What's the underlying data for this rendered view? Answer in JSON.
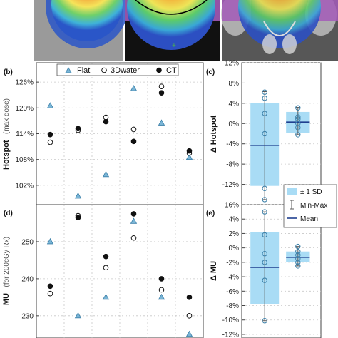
{
  "colors": {
    "flat": "#7ab5d6",
    "box_fill": "#a9dcf5",
    "mean_line": "#1f3f8f",
    "whisker": "#5a5a5a",
    "point_edge": "#3a7fa8",
    "grid": "#c8c8c8"
  },
  "images": [
    {
      "name": "dose-map-flat"
    },
    {
      "name": "dose-map-3dwater"
    },
    {
      "name": "dose-map-ct"
    }
  ],
  "chart_data": [
    {
      "panel": "(b)",
      "type": "scatter",
      "ylabel_main": "Hotspot",
      "ylabel_sub": "(max dose)",
      "yticks": [
        "126%",
        "120%",
        "114%",
        "108%",
        "102%"
      ],
      "ytick_values": [
        126,
        120,
        114,
        108,
        102
      ],
      "ylim": [
        97.5,
        130.5
      ],
      "x": [
        1,
        2,
        3,
        4,
        5,
        6
      ],
      "xlim": [
        0.5,
        6.5
      ],
      "grid": true,
      "legend": {
        "position": "top",
        "entries": [
          "Flat",
          "3Dwater",
          "CT"
        ]
      },
      "series": [
        {
          "name": "Flat",
          "marker": "triangle",
          "values": [
            120.5,
            99.5,
            104.5,
            124.5,
            116.5,
            108.5
          ]
        },
        {
          "name": "3Dwater",
          "marker": "open-circle",
          "values": [
            112.0,
            114.8,
            117.8,
            115.0,
            125.0,
            109.5
          ]
        },
        {
          "name": "CT",
          "marker": "filled-circle",
          "values": [
            113.8,
            115.2,
            116.8,
            112.2,
            123.5,
            110.0
          ]
        }
      ]
    },
    {
      "panel": "(d)",
      "type": "scatter",
      "ylabel_main": "MU",
      "ylabel_sub": "(for 200cGy Rx)",
      "yticks": [
        "250",
        "240",
        "230"
      ],
      "ytick_values": [
        250,
        240,
        230
      ],
      "ylim": [
        224,
        260
      ],
      "x": [
        1,
        2,
        3,
        4,
        5,
        6
      ],
      "xlim": [
        0.5,
        6.5
      ],
      "grid": true,
      "series": [
        {
          "name": "Flat",
          "marker": "triangle",
          "values": [
            250,
            230,
            235,
            255.5,
            235,
            225
          ]
        },
        {
          "name": "3Dwater",
          "marker": "open-circle",
          "values": [
            236,
            257,
            243,
            251,
            237,
            230
          ]
        },
        {
          "name": "CT",
          "marker": "filled-circle",
          "values": [
            238,
            256.5,
            246,
            257.5,
            240,
            235
          ]
        }
      ]
    },
    {
      "panel": "(c)",
      "type": "box",
      "ylabel_main": "Δ Hotspot",
      "yticks": [
        "12%",
        "8%",
        "4%",
        "0%",
        "-4%",
        "-8%",
        "-12%",
        "-16%"
      ],
      "ytick_values": [
        12,
        8,
        4,
        0,
        -4,
        -8,
        -12,
        -16
      ],
      "ylim": [
        -16,
        12
      ],
      "groups": [
        {
          "mean": -4.3,
          "sd_band": [
            -12.3,
            4.0
          ],
          "whisker": [
            -15.0,
            6.3
          ],
          "points": [
            6.2,
            5.0,
            2.0,
            -2.0,
            -12.8,
            -15.0
          ]
        },
        {
          "mean": 0.3,
          "sd_band": [
            -1.8,
            2.3
          ],
          "whisker": [
            -2.2,
            3.2
          ],
          "points": [
            3.1,
            1.3,
            0.9,
            0.0,
            -0.8,
            -2.2
          ]
        }
      ]
    },
    {
      "panel": "(e)",
      "type": "box",
      "ylabel_main": "Δ MU",
      "yticks": [
        "4%",
        "2%",
        "0%",
        "-2%",
        "-4%",
        "-6%",
        "-8%",
        "-10%",
        "-12%"
      ],
      "ytick_values": [
        4,
        2,
        0,
        -2,
        -4,
        -6,
        -8,
        -10,
        -12
      ],
      "ylim": [
        -12.5,
        6
      ],
      "legend": {
        "position": "top-right",
        "entries": [
          "± 1 SD",
          "Min-Max",
          "Mean"
        ]
      },
      "groups": [
        {
          "mean": -2.7,
          "sd_band": [
            -7.8,
            2.2
          ],
          "whisker": [
            -10.1,
            5.0
          ],
          "points": [
            5.0,
            1.8,
            -0.8,
            -2.0,
            -4.5,
            -10.1
          ]
        },
        {
          "mean": -1.3,
          "sd_band": [
            -2.0,
            -0.5
          ],
          "whisker": [
            -2.5,
            0.2
          ],
          "points": [
            0.2,
            -0.5,
            -1.0,
            -1.5,
            -2.0,
            -2.5
          ]
        }
      ]
    }
  ]
}
